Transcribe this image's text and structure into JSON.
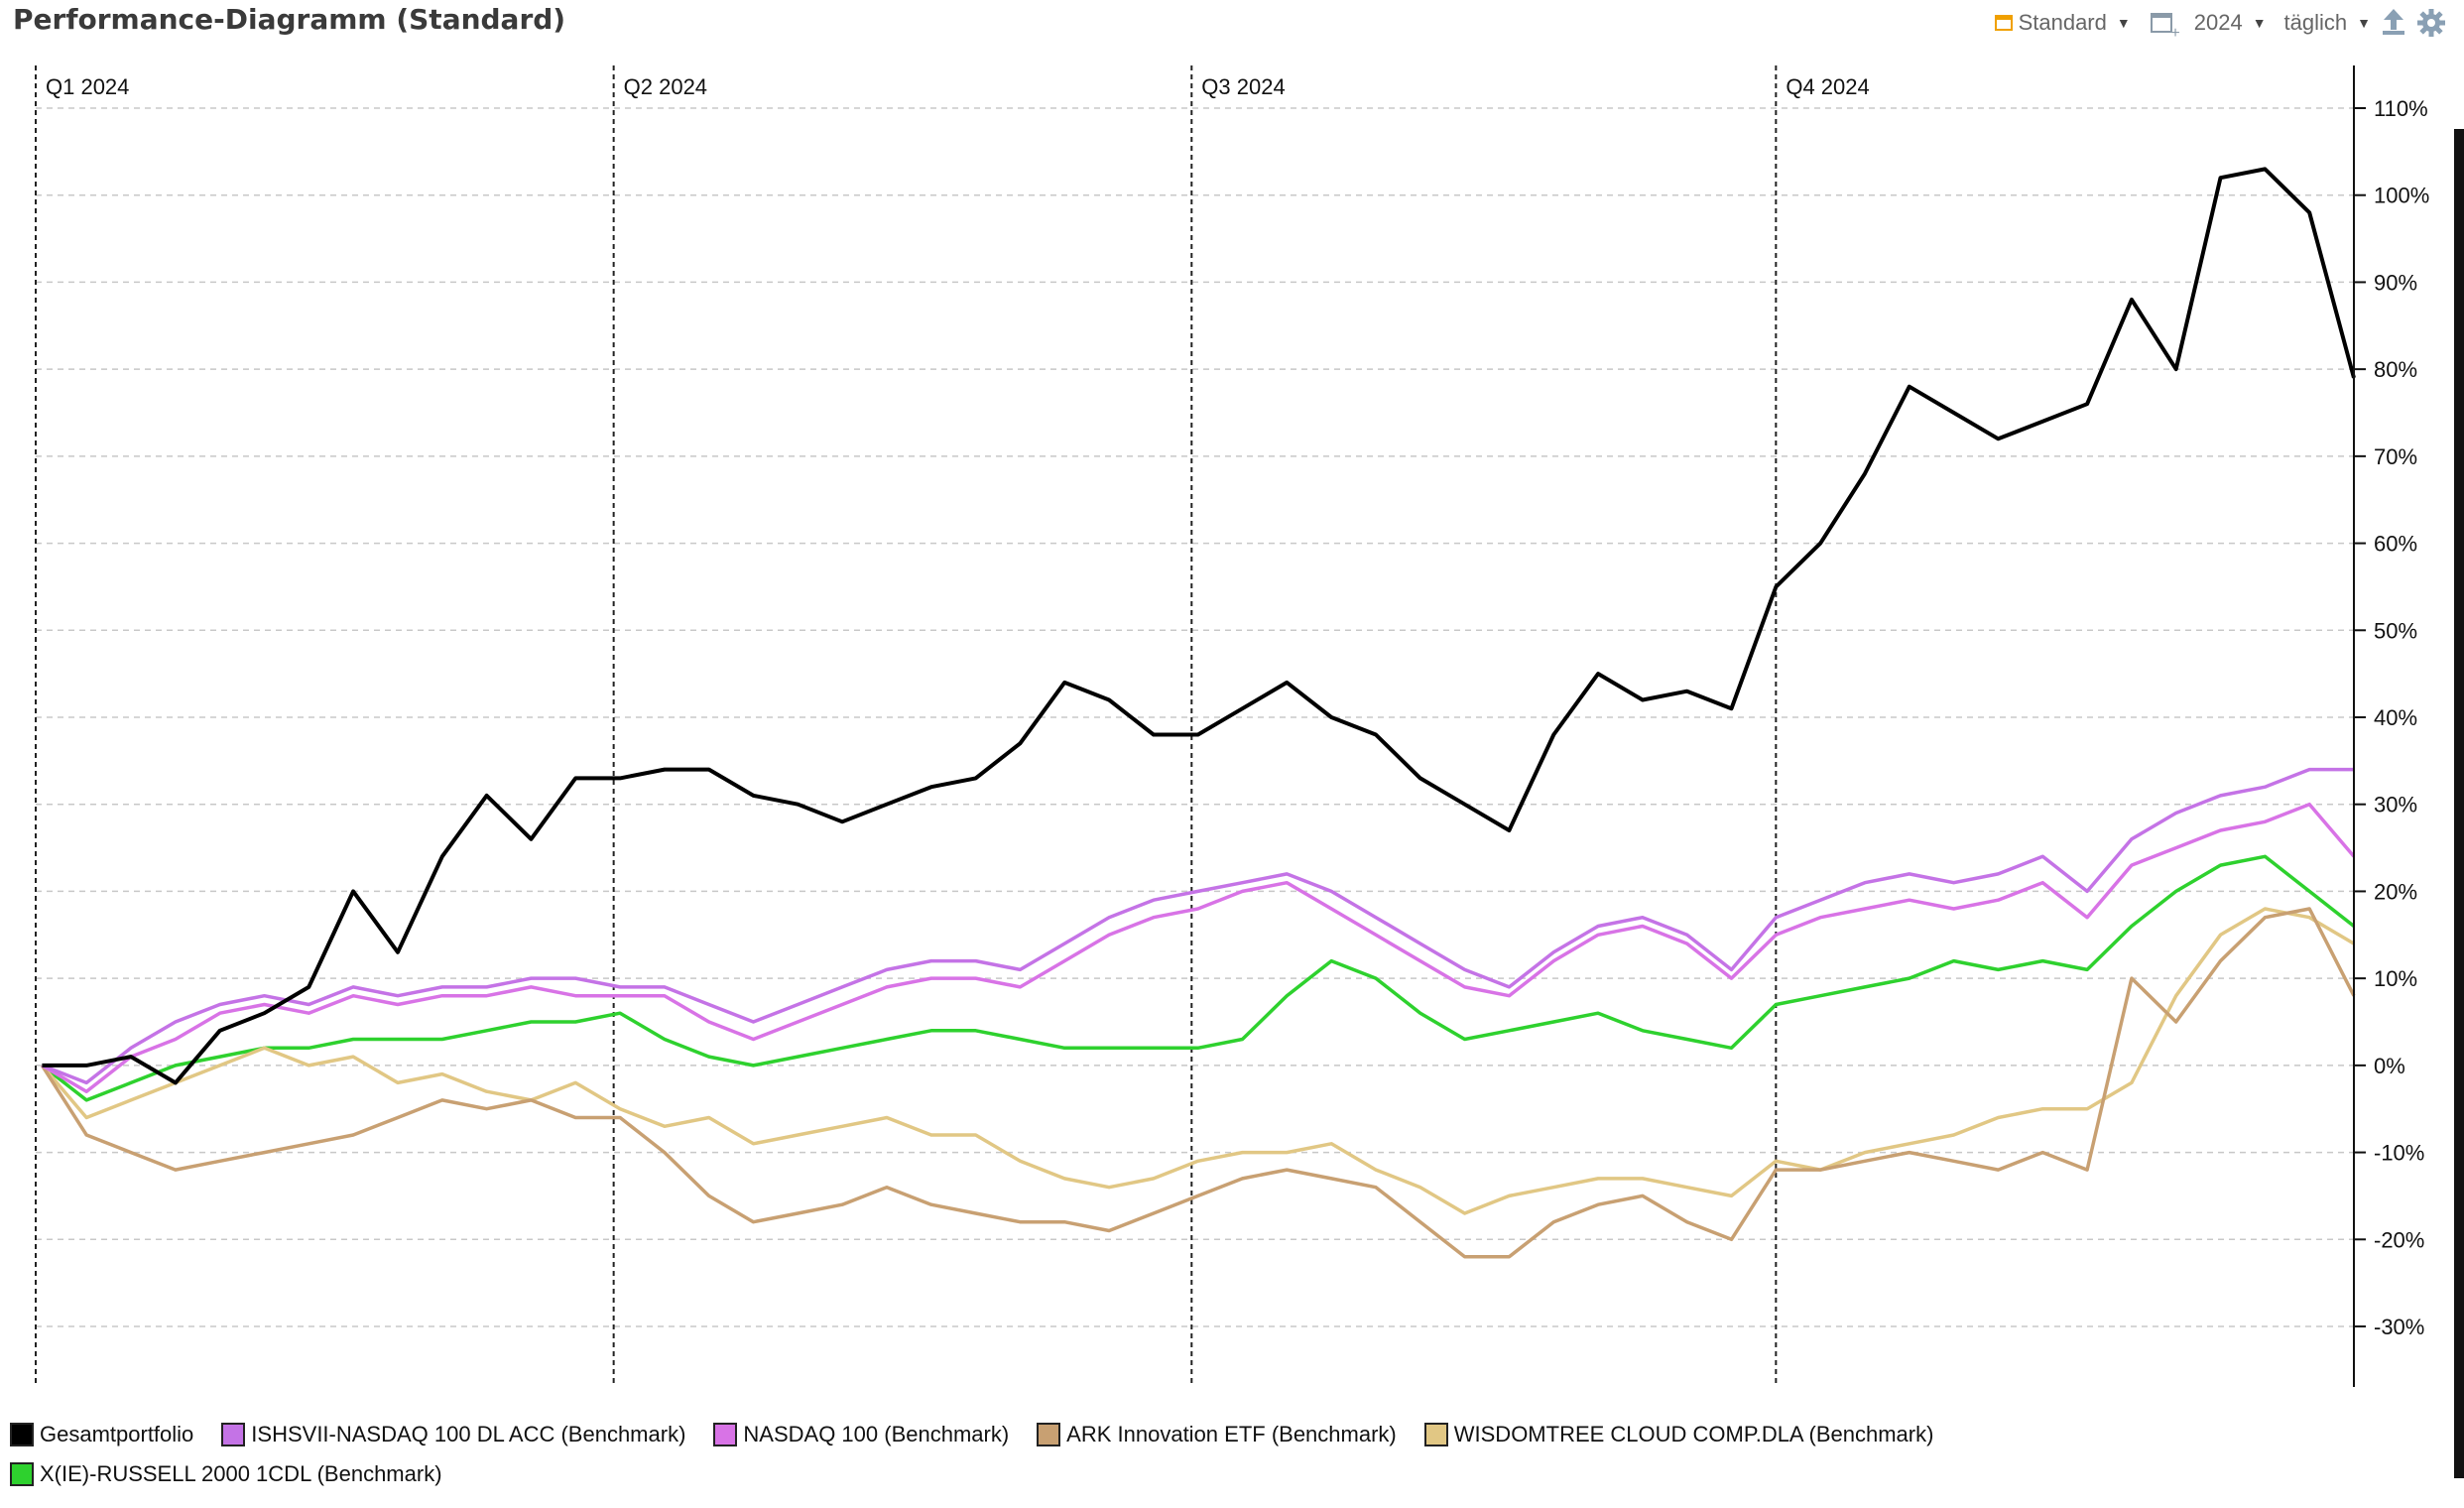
{
  "header": {
    "title": "Performance-Diagramm (Standard)"
  },
  "toolbar": {
    "view_label": "Standard",
    "year_label": "2024",
    "interval_label": "täglich"
  },
  "colors": {
    "grid": "#c8c8c8",
    "quarter_line": "#222222",
    "text": "#111111",
    "accent": "#f0a000"
  },
  "chart_data": {
    "type": "line",
    "ylabel": "",
    "xlabel": "",
    "y_unit": "%",
    "ylim": [
      -35,
      115
    ],
    "y_ticks": [
      110,
      100,
      90,
      80,
      70,
      60,
      50,
      40,
      30,
      20,
      10,
      0,
      -10,
      -20,
      -30
    ],
    "y_tick_labels": [
      "110%",
      "100%",
      "90%",
      "80%",
      "70%",
      "60%",
      "50%",
      "40%",
      "30%",
      "20%",
      "10%",
      "0%",
      "-10%",
      "-20%",
      "-30%"
    ],
    "grid": true,
    "y_axis_position": "right",
    "legend_position": "bottom",
    "quarters": [
      {
        "label": "Q1 2024",
        "start": "2024-01-01"
      },
      {
        "label": "Q2 2024",
        "start": "2024-04-01"
      },
      {
        "label": "Q3 2024",
        "start": "2024-07-01"
      },
      {
        "label": "Q4 2024",
        "start": "2024-10-01"
      }
    ],
    "x": [
      "2024-01-02",
      "2024-01-09",
      "2024-01-16",
      "2024-01-23",
      "2024-01-30",
      "2024-02-06",
      "2024-02-13",
      "2024-02-20",
      "2024-02-27",
      "2024-03-05",
      "2024-03-12",
      "2024-03-19",
      "2024-03-26",
      "2024-04-02",
      "2024-04-09",
      "2024-04-16",
      "2024-04-23",
      "2024-04-30",
      "2024-05-07",
      "2024-05-14",
      "2024-05-21",
      "2024-05-28",
      "2024-06-04",
      "2024-06-11",
      "2024-06-18",
      "2024-06-25",
      "2024-07-02",
      "2024-07-09",
      "2024-07-16",
      "2024-07-23",
      "2024-07-30",
      "2024-08-06",
      "2024-08-13",
      "2024-08-20",
      "2024-08-27",
      "2024-09-03",
      "2024-09-10",
      "2024-09-17",
      "2024-09-24",
      "2024-10-01",
      "2024-10-08",
      "2024-10-15",
      "2024-10-22",
      "2024-10-29",
      "2024-11-05",
      "2024-11-12",
      "2024-11-19",
      "2024-11-26",
      "2024-12-03",
      "2024-12-10",
      "2024-12-17",
      "2024-12-24",
      "2024-12-31"
    ],
    "series": [
      {
        "name": "Gesamtportfolio",
        "color": "#000000",
        "values": [
          0,
          0,
          1,
          -2,
          4,
          6,
          9,
          20,
          13,
          24,
          31,
          26,
          33,
          33,
          34,
          34,
          31,
          30,
          28,
          30,
          32,
          33,
          37,
          44,
          42,
          38,
          38,
          41,
          44,
          40,
          38,
          33,
          30,
          27,
          38,
          45,
          42,
          43,
          41,
          55,
          60,
          68,
          78,
          75,
          72,
          74,
          76,
          88,
          80,
          102,
          103,
          98,
          79
        ]
      },
      {
        "name": "ISHSVII-NASDAQ 100 DL ACC (Benchmark)",
        "color": "#c473e6",
        "values": [
          0,
          -2,
          2,
          5,
          7,
          8,
          7,
          9,
          8,
          9,
          9,
          10,
          10,
          9,
          9,
          7,
          5,
          7,
          9,
          11,
          12,
          12,
          11,
          14,
          17,
          19,
          20,
          21,
          22,
          20,
          17,
          14,
          11,
          9,
          13,
          16,
          17,
          15,
          11,
          17,
          19,
          21,
          22,
          21,
          22,
          24,
          20,
          26,
          29,
          31,
          32,
          34,
          34
        ]
      },
      {
        "name": "NASDAQ 100 (Benchmark)",
        "color": "#d873e6",
        "values": [
          0,
          -3,
          1,
          3,
          6,
          7,
          6,
          8,
          7,
          8,
          8,
          9,
          8,
          8,
          8,
          5,
          3,
          5,
          7,
          9,
          10,
          10,
          9,
          12,
          15,
          17,
          18,
          20,
          21,
          18,
          15,
          12,
          9,
          8,
          12,
          15,
          16,
          14,
          10,
          15,
          17,
          18,
          19,
          18,
          19,
          21,
          17,
          23,
          25,
          27,
          28,
          30,
          24
        ]
      },
      {
        "name": "ARK Innovation ETF (Benchmark)",
        "color": "#c8a072",
        "values": [
          0,
          -8,
          -10,
          -12,
          -11,
          -10,
          -9,
          -8,
          -6,
          -4,
          -5,
          -4,
          -6,
          -6,
          -10,
          -15,
          -18,
          -17,
          -16,
          -14,
          -16,
          -17,
          -18,
          -18,
          -19,
          -17,
          -15,
          -13,
          -12,
          -13,
          -14,
          -18,
          -22,
          -22,
          -18,
          -16,
          -15,
          -18,
          -20,
          -12,
          -12,
          -11,
          -10,
          -11,
          -12,
          -10,
          -12,
          10,
          5,
          12,
          17,
          18,
          8
        ]
      },
      {
        "name": "WISDOMTREE CLOUD COMP.DLA (Benchmark)",
        "color": "#e1c784",
        "values": [
          0,
          -6,
          -4,
          -2,
          0,
          2,
          0,
          1,
          -2,
          -1,
          -3,
          -4,
          -2,
          -5,
          -7,
          -6,
          -9,
          -8,
          -7,
          -6,
          -8,
          -8,
          -11,
          -13,
          -14,
          -13,
          -11,
          -10,
          -10,
          -9,
          -12,
          -14,
          -17,
          -15,
          -14,
          -13,
          -13,
          -14,
          -15,
          -11,
          -12,
          -10,
          -9,
          -8,
          -6,
          -5,
          -5,
          -2,
          8,
          15,
          18,
          17,
          14
        ]
      },
      {
        "name": "X(IE)-RUSSELL 2000 1CDL (Benchmark)",
        "color": "#2ed12e",
        "values": [
          0,
          -4,
          -2,
          0,
          1,
          2,
          2,
          3,
          3,
          3,
          4,
          5,
          5,
          6,
          3,
          1,
          0,
          1,
          2,
          3,
          4,
          4,
          3,
          2,
          2,
          2,
          2,
          3,
          8,
          12,
          10,
          6,
          3,
          4,
          5,
          6,
          4,
          3,
          2,
          7,
          8,
          9,
          10,
          12,
          11,
          12,
          11,
          16,
          20,
          23,
          24,
          20,
          16
        ]
      }
    ]
  }
}
